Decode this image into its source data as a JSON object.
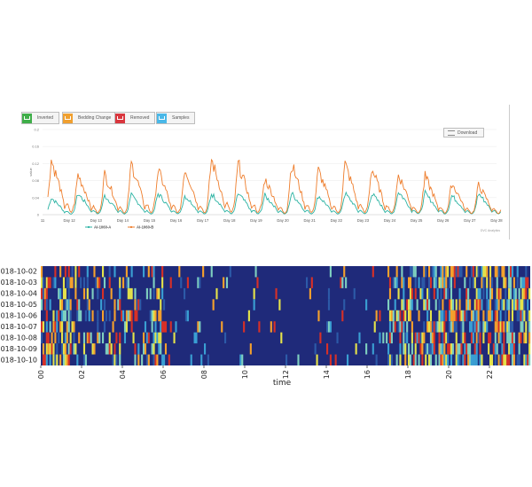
{
  "chart_data": [
    {
      "type": "line",
      "legend_buttons": [
        {
          "label": "Inverted",
          "color": "#3fae49"
        },
        {
          "label": "Bedding Change",
          "color": "#f0a030"
        },
        {
          "label": "Removed",
          "color": "#d9363e"
        },
        {
          "label": "Samples",
          "color": "#4ab8e8"
        }
      ],
      "download_label": "Download",
      "ylabel": "value",
      "y_ticks": [
        "0",
        "0.04",
        "0.08",
        "0.12",
        "0.16",
        "0.2"
      ],
      "ylim": [
        0,
        0.2
      ],
      "x_tick_labels": [
        "11",
        "Day 12",
        "Day 13",
        "Day 14",
        "Day 15",
        "Day 16",
        "Day 17",
        "Day 18",
        "Day 19",
        "Day 20",
        "Day 21",
        "Day 22",
        "Day 23",
        "Day 24",
        "Day 25",
        "Day 26",
        "Day 27",
        "Day 28"
      ],
      "series": [
        {
          "name": "AI-1060-A",
          "color": "#2bb3a3",
          "daily_peaks": [
            0.04,
            0.05,
            0.045,
            0.045,
            0.05,
            0.045,
            0.05,
            0.05,
            0.045,
            0.05,
            0.045,
            0.05,
            0.05,
            0.055,
            0.05,
            0.045,
            0.05
          ]
        },
        {
          "name": "AI-1060-B",
          "color": "#ee7d2c",
          "daily_peaks": [
            0.13,
            0.095,
            0.095,
            0.12,
            0.105,
            0.11,
            0.13,
            0.12,
            0.085,
            0.12,
            0.105,
            0.12,
            0.11,
            0.095,
            0.09,
            0.075,
            0.07
          ]
        }
      ],
      "credit": "DVC Analytics"
    },
    {
      "type": "heatmap",
      "y_categories": [
        "2018-10-02",
        "2018-10-03",
        "2018-10-04",
        "2018-10-05",
        "2018-10-06",
        "2018-10-07",
        "2018-10-08",
        "2018-10-09",
        "2018-10-10"
      ],
      "x_tick_labels": [
        "00",
        "02",
        "04",
        "06",
        "08",
        "10",
        "12",
        "14",
        "16",
        "18",
        "20",
        "22"
      ],
      "xlabel": "time",
      "colormap": [
        "#1f2a7a",
        "#2c5aa8",
        "#3a9fd3",
        "#7fd0c0",
        "#e5e34a",
        "#f5a12c",
        "#d73027"
      ]
    }
  ]
}
